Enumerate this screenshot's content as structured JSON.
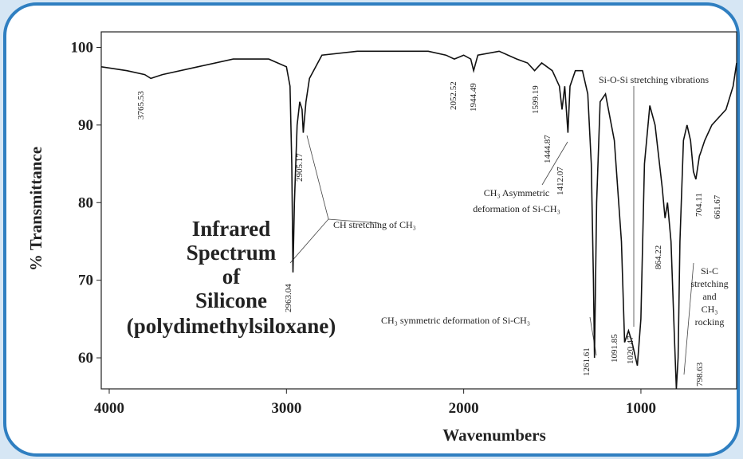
{
  "chart_data": {
    "type": "line",
    "title_lines": [
      "Infrared",
      "Spectrum",
      "of",
      "Silicone",
      "(polydimethylsiloxane)"
    ],
    "xlabel": "Wavenumbers",
    "ylabel": "% Transmittance",
    "xlim": [
      4045,
      460
    ],
    "ylim": [
      56,
      102
    ],
    "xticks": [
      4000,
      3000,
      2000,
      1000
    ],
    "yticks": [
      60,
      70,
      80,
      90,
      100
    ],
    "x": [
      4045,
      3900,
      3800,
      3765,
      3700,
      3500,
      3300,
      3100,
      3000,
      2980,
      2970,
      2963,
      2955,
      2940,
      2925,
      2912,
      2905,
      2890,
      2870,
      2800,
      2600,
      2400,
      2200,
      2100,
      2053,
      2000,
      1960,
      1944,
      1920,
      1800,
      1700,
      1640,
      1600,
      1560,
      1500,
      1460,
      1445,
      1430,
      1412,
      1400,
      1370,
      1330,
      1300,
      1280,
      1268,
      1262,
      1250,
      1230,
      1200,
      1150,
      1110,
      1092,
      1070,
      1050,
      1020,
      1000,
      980,
      950,
      920,
      880,
      864,
      850,
      830,
      810,
      800,
      790,
      780,
      760,
      740,
      720,
      704,
      690,
      670,
      662,
      640,
      600,
      520,
      480,
      460
    ],
    "series": [
      {
        "name": "Silicone",
        "color": "#111111",
        "values": [
          97.5,
          97,
          96.5,
          96,
          96.5,
          97.5,
          98.5,
          98.5,
          97.5,
          95,
          85,
          71,
          80,
          90,
          93,
          92,
          89,
          93,
          96,
          99,
          99.5,
          99.5,
          99.5,
          99,
          98.5,
          99,
          98.5,
          97,
          99,
          99.5,
          98.5,
          98,
          97,
          98,
          97,
          95,
          92,
          95,
          89,
          95,
          97,
          97,
          94,
          85,
          70,
          60,
          80,
          93,
          94,
          88,
          75,
          62,
          63.5,
          62,
          59,
          65,
          85,
          92.5,
          90,
          82,
          78,
          80,
          75,
          62,
          56,
          60,
          75,
          88,
          90,
          88,
          84,
          83,
          86,
          86.5,
          88,
          90,
          92,
          95,
          98
        ]
      }
    ],
    "peaks": [
      3765.53,
      2963.04,
      2905.17,
      2052.52,
      1944.49,
      1599.19,
      1444.87,
      1412.07,
      1261.61,
      1091.85,
      1020.47,
      864.22,
      798.63,
      704.11,
      661.67
    ],
    "annotations": {
      "ch_stretch": "CH stretching of CH₃",
      "ch3_asym": [
        "CH₃ Asymmetric",
        "deformation of Si-CH₃"
      ],
      "sio": "Si-O-Si stretching vibrations",
      "ch3_sym": "CH₃ symmetric deformation of Si-CH₃",
      "sic": [
        "Si-C",
        "stretching",
        "and",
        "CH₃",
        "rocking"
      ]
    }
  }
}
